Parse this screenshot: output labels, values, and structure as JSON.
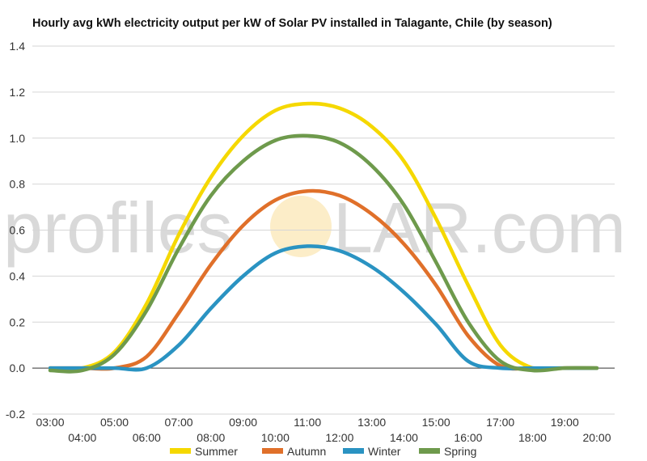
{
  "chart_data": {
    "type": "line",
    "title": "Hourly avg kWh electricity output per kW of Solar PV installed in Talagante, Chile (by season)",
    "xlabel": "",
    "ylabel": "",
    "ylim": [
      -0.2,
      1.4
    ],
    "yticks": [
      "-0.2",
      "0.0",
      "0.2",
      "0.4",
      "0.6",
      "0.8",
      "1.0",
      "1.2",
      "1.4"
    ],
    "grid": true,
    "legend_position": "bottom",
    "categories": [
      "03:00",
      "04:00",
      "05:00",
      "06:00",
      "07:00",
      "08:00",
      "09:00",
      "10:00",
      "11:00",
      "12:00",
      "13:00",
      "14:00",
      "15:00",
      "16:00",
      "17:00",
      "18:00",
      "19:00",
      "20:00"
    ],
    "series": [
      {
        "name": "Summer",
        "color": "#f5d800",
        "values": [
          0.0,
          0.0,
          0.07,
          0.28,
          0.58,
          0.83,
          1.01,
          1.12,
          1.15,
          1.13,
          1.05,
          0.9,
          0.65,
          0.36,
          0.1,
          0.0,
          0.0,
          0.0
        ]
      },
      {
        "name": "Autumn",
        "color": "#e0702a",
        "values": [
          0.0,
          0.0,
          0.0,
          0.05,
          0.24,
          0.45,
          0.62,
          0.73,
          0.77,
          0.75,
          0.67,
          0.54,
          0.36,
          0.14,
          0.01,
          0.0,
          0.0,
          0.0
        ]
      },
      {
        "name": "Winter",
        "color": "#2a93c2",
        "values": [
          0.0,
          0.0,
          0.0,
          0.0,
          0.1,
          0.26,
          0.4,
          0.5,
          0.53,
          0.51,
          0.44,
          0.33,
          0.19,
          0.03,
          0.0,
          0.0,
          0.0,
          0.0
        ]
      },
      {
        "name": "Spring",
        "color": "#6e9a4c",
        "values": [
          -0.01,
          -0.01,
          0.06,
          0.25,
          0.52,
          0.75,
          0.9,
          0.99,
          1.01,
          0.98,
          0.88,
          0.71,
          0.46,
          0.2,
          0.03,
          -0.01,
          0.0,
          0.0
        ]
      }
    ]
  },
  "watermark": {
    "text_left": "profiles",
    "text_right": "LAR.com"
  }
}
